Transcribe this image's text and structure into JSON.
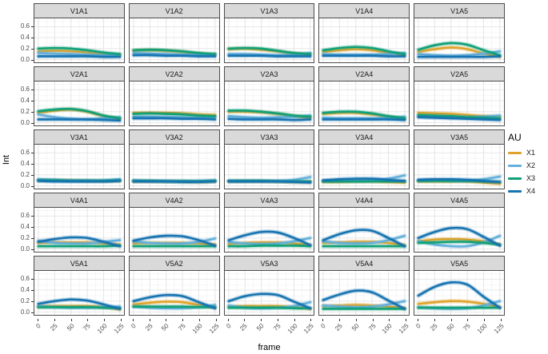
{
  "figure": {
    "y_axis_title": "Int",
    "x_axis_title": "frame",
    "y_ticks": [
      "0.0",
      "0.2",
      "0.4",
      "0.6"
    ],
    "x_ticks": [
      "0",
      "25",
      "50",
      "75",
      "100",
      "125"
    ],
    "legend": {
      "title": "AU",
      "items": [
        {
          "label": "X1",
          "color": "#DFA32A"
        },
        {
          "label": "X2",
          "color": "#64AFDC"
        },
        {
          "label": "X3",
          "color": "#0FA077"
        },
        {
          "label": "X4",
          "color": "#1673B1"
        }
      ]
    },
    "colors": {
      "strip_bg": "#D9D9D9",
      "panel_border": "#4D4D4D",
      "grid_major": "#E4E4E4",
      "grid_minor": "#F1F1F1",
      "tick_text": "#4D4D4D"
    }
  },
  "chart_data": {
    "type": "line",
    "title": "",
    "xlabel": "frame",
    "ylabel": "Int",
    "x": [
      0,
      25,
      50,
      75,
      100,
      125
    ],
    "xlim": [
      0,
      125
    ],
    "ylim": [
      -0.05,
      0.75
    ],
    "y_tick_values": [
      0.0,
      0.2,
      0.4,
      0.6
    ],
    "y_minor_ticks": [
      0.1,
      0.3,
      0.5,
      0.7
    ],
    "x_minor_step": 12.5,
    "grid": true,
    "smoothed_lines_with_ci": true,
    "legend_position": "right",
    "legend_title": "AU",
    "series_names": [
      "X1",
      "X2",
      "X3",
      "X4"
    ],
    "series_colors": {
      "X1": "#DFA32A",
      "X2": "#64AFDC",
      "X3": "#0FA077",
      "X4": "#1673B1"
    },
    "facet_rows": [
      "V1",
      "V2",
      "V3",
      "V4",
      "V5"
    ],
    "facet_cols": [
      "A1",
      "A2",
      "A3",
      "A4",
      "A5"
    ],
    "facets": [
      {
        "label": "V1A1",
        "series": {
          "X1": [
            0.15,
            0.16,
            0.15,
            0.13,
            0.1,
            0.08
          ],
          "X2": [
            0.12,
            0.11,
            0.1,
            0.09,
            0.08,
            0.09
          ],
          "X3": [
            0.2,
            0.21,
            0.2,
            0.17,
            0.13,
            0.1
          ],
          "X4": [
            0.06,
            0.06,
            0.06,
            0.06,
            0.05,
            0.05
          ]
        }
      },
      {
        "label": "V1A2",
        "series": {
          "X1": [
            0.16,
            0.17,
            0.16,
            0.14,
            0.11,
            0.09
          ],
          "X2": [
            0.12,
            0.11,
            0.1,
            0.09,
            0.09,
            0.1
          ],
          "X3": [
            0.17,
            0.18,
            0.17,
            0.15,
            0.12,
            0.1
          ],
          "X4": [
            0.08,
            0.08,
            0.07,
            0.07,
            0.06,
            0.06
          ]
        }
      },
      {
        "label": "V1A3",
        "series": {
          "X1": [
            0.19,
            0.2,
            0.18,
            0.15,
            0.11,
            0.09
          ],
          "X2": [
            0.1,
            0.1,
            0.09,
            0.08,
            0.09,
            0.12
          ],
          "X3": [
            0.2,
            0.21,
            0.2,
            0.16,
            0.12,
            0.1
          ],
          "X4": [
            0.07,
            0.07,
            0.07,
            0.06,
            0.06,
            0.06
          ]
        }
      },
      {
        "label": "V1A4",
        "series": {
          "X1": [
            0.14,
            0.17,
            0.19,
            0.17,
            0.12,
            0.08
          ],
          "X2": [
            0.1,
            0.09,
            0.09,
            0.09,
            0.1,
            0.12
          ],
          "X3": [
            0.17,
            0.21,
            0.23,
            0.21,
            0.15,
            0.1
          ],
          "X4": [
            0.07,
            0.07,
            0.07,
            0.07,
            0.06,
            0.06
          ]
        }
      },
      {
        "label": "V1A5",
        "series": {
          "X1": [
            0.14,
            0.19,
            0.22,
            0.19,
            0.11,
            0.05
          ],
          "X2": [
            0.1,
            0.08,
            0.07,
            0.08,
            0.11,
            0.15
          ],
          "X3": [
            0.18,
            0.26,
            0.3,
            0.27,
            0.17,
            0.08
          ],
          "X4": [
            0.05,
            0.05,
            0.05,
            0.05,
            0.05,
            0.06
          ]
        }
      },
      {
        "label": "V2A1",
        "series": {
          "X1": [
            0.18,
            0.22,
            0.24,
            0.2,
            0.12,
            0.07
          ],
          "X2": [
            0.15,
            0.1,
            0.07,
            0.06,
            0.08,
            0.1
          ],
          "X3": [
            0.21,
            0.24,
            0.25,
            0.21,
            0.13,
            0.08
          ],
          "X4": [
            0.06,
            0.06,
            0.06,
            0.06,
            0.05,
            0.04
          ]
        }
      },
      {
        "label": "V2A2",
        "series": {
          "X1": [
            0.18,
            0.18,
            0.18,
            0.17,
            0.15,
            0.14
          ],
          "X2": [
            0.11,
            0.11,
            0.1,
            0.1,
            0.09,
            0.1
          ],
          "X3": [
            0.16,
            0.17,
            0.16,
            0.15,
            0.13,
            0.12
          ],
          "X4": [
            0.08,
            0.08,
            0.08,
            0.07,
            0.07,
            0.06
          ]
        }
      },
      {
        "label": "V2A3",
        "series": {
          "X1": [
            0.2,
            0.2,
            0.19,
            0.16,
            0.12,
            0.09
          ],
          "X2": [
            0.12,
            0.1,
            0.09,
            0.1,
            0.11,
            0.13
          ],
          "X3": [
            0.22,
            0.22,
            0.2,
            0.17,
            0.13,
            0.11
          ],
          "X4": [
            0.07,
            0.06,
            0.06,
            0.06,
            0.05,
            0.06
          ]
        }
      },
      {
        "label": "V2A4",
        "series": {
          "X1": [
            0.16,
            0.18,
            0.18,
            0.15,
            0.11,
            0.07
          ],
          "X2": [
            0.09,
            0.08,
            0.08,
            0.08,
            0.09,
            0.11
          ],
          "X3": [
            0.18,
            0.2,
            0.2,
            0.17,
            0.12,
            0.08
          ],
          "X4": [
            0.06,
            0.06,
            0.06,
            0.06,
            0.06,
            0.05
          ]
        }
      },
      {
        "label": "V2A5",
        "series": {
          "X1": [
            0.18,
            0.17,
            0.16,
            0.14,
            0.12,
            0.11
          ],
          "X2": [
            0.12,
            0.11,
            0.1,
            0.1,
            0.11,
            0.13
          ],
          "X3": [
            0.14,
            0.13,
            0.12,
            0.1,
            0.09,
            0.08
          ],
          "X4": [
            0.1,
            0.09,
            0.08,
            0.07,
            0.06,
            0.05
          ]
        }
      },
      {
        "label": "V3A1",
        "series": {
          "X1": [
            0.1,
            0.1,
            0.1,
            0.09,
            0.09,
            0.09
          ],
          "X2": [
            0.12,
            0.11,
            0.1,
            0.1,
            0.1,
            0.12
          ],
          "X3": [
            0.1,
            0.1,
            0.09,
            0.09,
            0.09,
            0.1
          ],
          "X4": [
            0.09,
            0.08,
            0.08,
            0.08,
            0.08,
            0.09
          ]
        }
      },
      {
        "label": "V3A2",
        "series": {
          "X1": [
            0.08,
            0.08,
            0.08,
            0.08,
            0.07,
            0.08
          ],
          "X2": [
            0.1,
            0.09,
            0.09,
            0.09,
            0.09,
            0.1
          ],
          "X3": [
            0.09,
            0.09,
            0.08,
            0.08,
            0.08,
            0.09
          ],
          "X4": [
            0.08,
            0.08,
            0.08,
            0.07,
            0.07,
            0.08
          ]
        }
      },
      {
        "label": "V3A3",
        "series": {
          "X1": [
            0.08,
            0.08,
            0.08,
            0.08,
            0.07,
            0.07
          ],
          "X2": [
            0.09,
            0.09,
            0.09,
            0.09,
            0.11,
            0.16
          ],
          "X3": [
            0.09,
            0.09,
            0.09,
            0.08,
            0.08,
            0.08
          ],
          "X4": [
            0.08,
            0.08,
            0.08,
            0.08,
            0.07,
            0.06
          ]
        }
      },
      {
        "label": "V3A4",
        "series": {
          "X1": [
            0.07,
            0.07,
            0.08,
            0.08,
            0.07,
            0.06
          ],
          "X2": [
            0.09,
            0.09,
            0.09,
            0.1,
            0.13,
            0.19
          ],
          "X3": [
            0.08,
            0.08,
            0.08,
            0.08,
            0.08,
            0.08
          ],
          "X4": [
            0.1,
            0.12,
            0.13,
            0.13,
            0.11,
            0.09
          ]
        }
      },
      {
        "label": "V3A5",
        "series": {
          "X1": [
            0.08,
            0.08,
            0.08,
            0.08,
            0.06,
            0.04
          ],
          "X2": [
            0.1,
            0.1,
            0.09,
            0.09,
            0.12,
            0.17
          ],
          "X3": [
            0.09,
            0.09,
            0.09,
            0.09,
            0.08,
            0.07
          ],
          "X4": [
            0.11,
            0.12,
            0.12,
            0.11,
            0.09,
            0.07
          ]
        }
      },
      {
        "label": "V4A1",
        "series": {
          "X1": [
            0.11,
            0.12,
            0.12,
            0.12,
            0.1,
            0.08
          ],
          "X2": [
            0.15,
            0.11,
            0.1,
            0.1,
            0.13,
            0.16
          ],
          "X3": [
            0.05,
            0.05,
            0.05,
            0.05,
            0.05,
            0.06
          ],
          "X4": [
            0.13,
            0.18,
            0.21,
            0.2,
            0.13,
            0.05
          ]
        }
      },
      {
        "label": "V4A2",
        "series": {
          "X1": [
            0.1,
            0.11,
            0.11,
            0.11,
            0.1,
            0.08
          ],
          "X2": [
            0.14,
            0.11,
            0.1,
            0.1,
            0.13,
            0.19
          ],
          "X3": [
            0.05,
            0.05,
            0.05,
            0.05,
            0.05,
            0.05
          ],
          "X4": [
            0.15,
            0.21,
            0.24,
            0.23,
            0.16,
            0.06
          ]
        }
      },
      {
        "label": "V4A3",
        "series": {
          "X1": [
            0.09,
            0.11,
            0.12,
            0.12,
            0.1,
            0.07
          ],
          "X2": [
            0.13,
            0.1,
            0.09,
            0.1,
            0.14,
            0.2
          ],
          "X3": [
            0.05,
            0.05,
            0.06,
            0.06,
            0.06,
            0.05
          ],
          "X4": [
            0.16,
            0.25,
            0.31,
            0.3,
            0.2,
            0.07
          ]
        }
      },
      {
        "label": "V4A4",
        "series": {
          "X1": [
            0.11,
            0.12,
            0.13,
            0.13,
            0.11,
            0.07
          ],
          "X2": [
            0.14,
            0.11,
            0.1,
            0.11,
            0.16,
            0.24
          ],
          "X3": [
            0.05,
            0.05,
            0.05,
            0.05,
            0.05,
            0.05
          ],
          "X4": [
            0.16,
            0.27,
            0.34,
            0.33,
            0.2,
            0.05
          ]
        }
      },
      {
        "label": "V4A5",
        "series": {
          "X1": [
            0.14,
            0.17,
            0.18,
            0.17,
            0.14,
            0.08
          ],
          "X2": [
            0.14,
            0.08,
            0.05,
            0.05,
            0.12,
            0.24
          ],
          "X3": [
            0.11,
            0.12,
            0.13,
            0.13,
            0.11,
            0.08
          ],
          "X4": [
            0.2,
            0.31,
            0.38,
            0.36,
            0.22,
            0.06
          ]
        }
      },
      {
        "label": "V5A1",
        "series": {
          "X1": [
            0.1,
            0.11,
            0.11,
            0.11,
            0.09,
            0.05
          ],
          "X2": [
            0.1,
            0.09,
            0.08,
            0.08,
            0.09,
            0.1
          ],
          "X3": [
            0.09,
            0.09,
            0.09,
            0.09,
            0.08,
            0.07
          ],
          "X4": [
            0.15,
            0.2,
            0.23,
            0.21,
            0.14,
            0.06
          ]
        }
      },
      {
        "label": "V5A2",
        "series": {
          "X1": [
            0.14,
            0.17,
            0.19,
            0.18,
            0.13,
            0.08
          ],
          "X2": [
            0.1,
            0.08,
            0.07,
            0.07,
            0.09,
            0.13
          ],
          "X3": [
            0.1,
            0.1,
            0.1,
            0.1,
            0.09,
            0.09
          ],
          "X4": [
            0.2,
            0.27,
            0.31,
            0.29,
            0.18,
            0.07
          ]
        }
      },
      {
        "label": "V5A3",
        "series": {
          "X1": [
            0.1,
            0.11,
            0.11,
            0.11,
            0.09,
            0.06
          ],
          "X2": [
            0.12,
            0.08,
            0.07,
            0.08,
            0.11,
            0.18
          ],
          "X3": [
            0.08,
            0.08,
            0.08,
            0.08,
            0.07,
            0.07
          ],
          "X4": [
            0.2,
            0.29,
            0.33,
            0.31,
            0.19,
            0.07
          ]
        }
      },
      {
        "label": "V5A4",
        "series": {
          "X1": [
            0.11,
            0.12,
            0.13,
            0.12,
            0.1,
            0.07
          ],
          "X2": [
            0.12,
            0.1,
            0.09,
            0.1,
            0.14,
            0.2
          ],
          "X3": [
            0.06,
            0.06,
            0.06,
            0.06,
            0.06,
            0.06
          ],
          "X4": [
            0.22,
            0.32,
            0.39,
            0.36,
            0.21,
            0.06
          ]
        }
      },
      {
        "label": "V5A5",
        "series": {
          "X1": [
            0.15,
            0.18,
            0.2,
            0.19,
            0.15,
            0.09
          ],
          "X2": [
            0.09,
            0.07,
            0.06,
            0.07,
            0.12,
            0.2
          ],
          "X3": [
            0.08,
            0.08,
            0.08,
            0.08,
            0.08,
            0.08
          ],
          "X4": [
            0.3,
            0.46,
            0.54,
            0.5,
            0.28,
            0.08
          ]
        }
      }
    ]
  }
}
